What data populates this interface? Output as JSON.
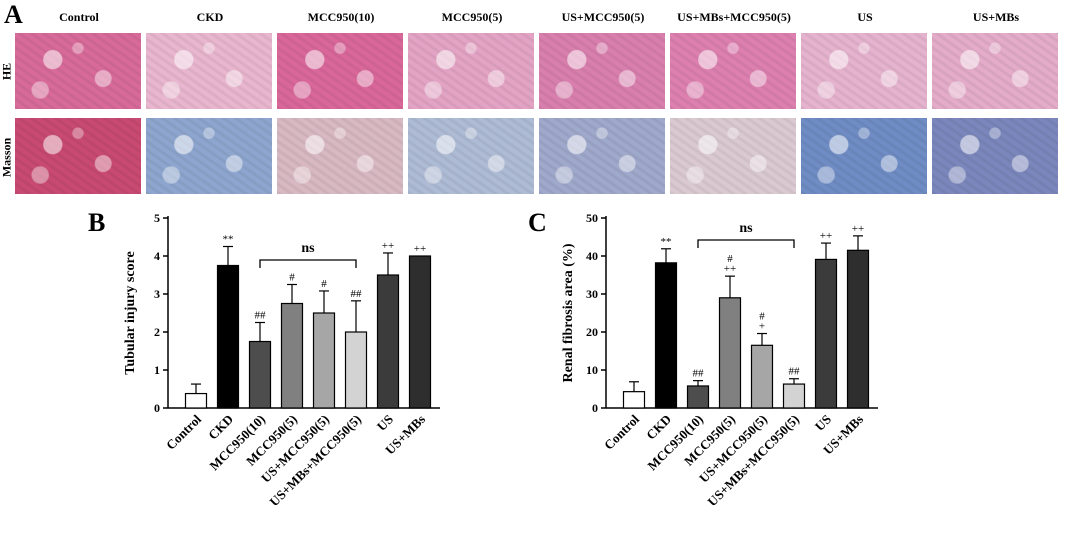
{
  "panels": {
    "a": "A",
    "b": "B",
    "c": "C"
  },
  "histology": {
    "columns": [
      "Control",
      "CKD",
      "MCC950(10)",
      "MCC950(5)",
      "US+MCC950(5)",
      "US+MBs+MCC950(5)",
      "US",
      "US+MBs"
    ],
    "rows": [
      "HE",
      "Masson"
    ],
    "he_colors": [
      "#d86a9a",
      "#e9b6cf",
      "#d9679a",
      "#e3a3c4",
      "#d97fae",
      "#dd80b0",
      "#e6b3ce",
      "#e4acc9"
    ],
    "masson_colors": [
      "#c84a72",
      "#8ea6cf",
      "#d8b8c2",
      "#aebbd5",
      "#9fa9cb",
      "#dac9d1",
      "#6f8cc4",
      "#7b87bc"
    ]
  },
  "chart_data": [
    {
      "type": "bar",
      "panel": "B",
      "categories": [
        "Control",
        "CKD",
        "MCC950(10)",
        "MCC950(5)",
        "US+MCC950(5)",
        "US+MBs+MCC950(5)",
        "US",
        "US+MBs"
      ],
      "values": [
        0.38,
        3.75,
        1.75,
        2.75,
        2.5,
        2.0,
        3.5,
        4.0
      ],
      "errors": [
        0.25,
        0.5,
        0.5,
        0.5,
        0.58,
        0.82,
        0.58,
        0.0
      ],
      "bar_colors": [
        "#ffffff",
        "#000000",
        "#4d4d4d",
        "#808080",
        "#a6a6a6",
        "#d3d3d3",
        "#3b3b3b",
        "#2e2e2e"
      ],
      "annotations": [
        "",
        "**",
        "##",
        "#",
        "#",
        "##",
        "++",
        "++"
      ],
      "bracket_label": "ns",
      "xlabel": "",
      "ylabel": "Tubular injury score",
      "ylim": [
        0,
        5
      ],
      "yticks": [
        0,
        1,
        2,
        3,
        4,
        5
      ]
    },
    {
      "type": "bar",
      "panel": "C",
      "categories": [
        "Control",
        "CKD",
        "MCC950(10)",
        "MCC950(5)",
        "US+MCC950(5)",
        "US+MBs+MCC950(5)",
        "US",
        "US+MBs"
      ],
      "values": [
        4.3,
        38.2,
        5.8,
        29.0,
        16.5,
        6.3,
        39.1,
        41.5
      ],
      "errors": [
        2.6,
        3.7,
        1.4,
        5.7,
        3.1,
        1.4,
        4.3,
        3.8
      ],
      "bar_colors": [
        "#ffffff",
        "#000000",
        "#4d4d4d",
        "#808080",
        "#a6a6a6",
        "#d3d3d3",
        "#3b3b3b",
        "#2e2e2e"
      ],
      "annotations": [
        "",
        "**",
        "##",
        "#\n++",
        "#\n+",
        "##",
        "++",
        "++"
      ],
      "bracket_label": "ns",
      "xlabel": "",
      "ylabel": "Renal fibrosis area (%)",
      "ylim": [
        0,
        50
      ],
      "yticks": [
        0,
        10,
        20,
        30,
        40,
        50
      ]
    }
  ]
}
